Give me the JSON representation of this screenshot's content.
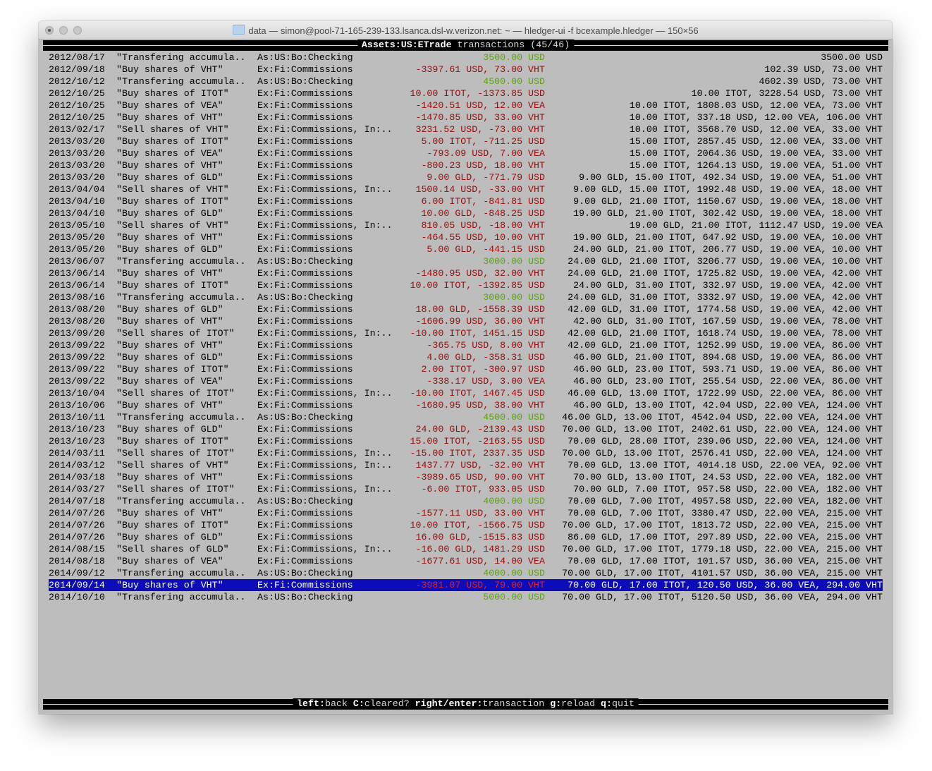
{
  "window": {
    "title": "data — simon@pool-71-165-239-133.lsanca.dsl-w.verizon.net: ~ — hledger-ui -f bcexample.hledger — 150×56"
  },
  "header": {
    "account": "Assets:US:ETrade",
    "suffix": " transactions (45/46)"
  },
  "colors": {
    "positive": "#5aa40c",
    "negative": "#a00b0b",
    "selection": "#0c0cb8",
    "background": "#bdbdbd"
  },
  "selected_index": 44,
  "rows": [
    {
      "date": "2012/08/17",
      "desc": "\"Transfering accumula..",
      "account": "As:US:Bo:Checking",
      "amount": "3500.00 USD",
      "sign": "green",
      "balance": "3500.00 USD"
    },
    {
      "date": "2012/09/18",
      "desc": "\"Buy shares of VHT\"",
      "account": "Ex:Fi:Commissions",
      "amount": "-3397.61 USD, 73.00 VHT",
      "sign": "red",
      "balance": "102.39 USD, 73.00 VHT"
    },
    {
      "date": "2012/10/12",
      "desc": "\"Transfering accumula..",
      "account": "As:US:Bo:Checking",
      "amount": "4500.00 USD",
      "sign": "green",
      "balance": "4602.39 USD, 73.00 VHT"
    },
    {
      "date": "2012/10/25",
      "desc": "\"Buy shares of ITOT\"",
      "account": "Ex:Fi:Commissions",
      "amount": "10.00 ITOT, -1373.85 USD",
      "sign": "red",
      "balance": "10.00 ITOT, 3228.54 USD, 73.00 VHT"
    },
    {
      "date": "2012/10/25",
      "desc": "\"Buy shares of VEA\"",
      "account": "Ex:Fi:Commissions",
      "amount": "-1420.51 USD, 12.00 VEA",
      "sign": "red",
      "balance": "10.00 ITOT, 1808.03 USD, 12.00 VEA, 73.00 VHT"
    },
    {
      "date": "2012/10/25",
      "desc": "\"Buy shares of VHT\"",
      "account": "Ex:Fi:Commissions",
      "amount": "-1470.85 USD, 33.00 VHT",
      "sign": "red",
      "balance": "10.00 ITOT, 337.18 USD, 12.00 VEA, 106.00 VHT"
    },
    {
      "date": "2013/02/17",
      "desc": "\"Sell shares of VHT\"",
      "account": "Ex:Fi:Commissions, In:..",
      "amount": "3231.52 USD, -73.00 VHT",
      "sign": "red",
      "balance": "10.00 ITOT, 3568.70 USD, 12.00 VEA, 33.00 VHT"
    },
    {
      "date": "2013/03/20",
      "desc": "\"Buy shares of ITOT\"",
      "account": "Ex:Fi:Commissions",
      "amount": "5.00 ITOT, -711.25 USD",
      "sign": "red",
      "balance": "15.00 ITOT, 2857.45 USD, 12.00 VEA, 33.00 VHT"
    },
    {
      "date": "2013/03/20",
      "desc": "\"Buy shares of VEA\"",
      "account": "Ex:Fi:Commissions",
      "amount": "-793.09 USD, 7.00 VEA",
      "sign": "red",
      "balance": "15.00 ITOT, 2064.36 USD, 19.00 VEA, 33.00 VHT"
    },
    {
      "date": "2013/03/20",
      "desc": "\"Buy shares of VHT\"",
      "account": "Ex:Fi:Commissions",
      "amount": "-800.23 USD, 18.00 VHT",
      "sign": "red",
      "balance": "15.00 ITOT, 1264.13 USD, 19.00 VEA, 51.00 VHT"
    },
    {
      "date": "2013/03/20",
      "desc": "\"Buy shares of GLD\"",
      "account": "Ex:Fi:Commissions",
      "amount": "9.00 GLD, -771.79 USD",
      "sign": "red",
      "balance": "9.00 GLD, 15.00 ITOT, 492.34 USD, 19.00 VEA, 51.00 VHT"
    },
    {
      "date": "2013/04/04",
      "desc": "\"Sell shares of VHT\"",
      "account": "Ex:Fi:Commissions, In:..",
      "amount": "1500.14 USD, -33.00 VHT",
      "sign": "red",
      "balance": "9.00 GLD, 15.00 ITOT, 1992.48 USD, 19.00 VEA, 18.00 VHT"
    },
    {
      "date": "2013/04/10",
      "desc": "\"Buy shares of ITOT\"",
      "account": "Ex:Fi:Commissions",
      "amount": "6.00 ITOT, -841.81 USD",
      "sign": "red",
      "balance": "9.00 GLD, 21.00 ITOT, 1150.67 USD, 19.00 VEA, 18.00 VHT"
    },
    {
      "date": "2013/04/10",
      "desc": "\"Buy shares of GLD\"",
      "account": "Ex:Fi:Commissions",
      "amount": "10.00 GLD, -848.25 USD",
      "sign": "red",
      "balance": "19.00 GLD, 21.00 ITOT, 302.42 USD, 19.00 VEA, 18.00 VHT"
    },
    {
      "date": "2013/05/10",
      "desc": "\"Sell shares of VHT\"",
      "account": "Ex:Fi:Commissions, In:..",
      "amount": "810.05 USD, -18.00 VHT",
      "sign": "red",
      "balance": "19.00 GLD, 21.00 ITOT, 1112.47 USD, 19.00 VEA"
    },
    {
      "date": "2013/05/20",
      "desc": "\"Buy shares of VHT\"",
      "account": "Ex:Fi:Commissions",
      "amount": "-464.55 USD, 10.00 VHT",
      "sign": "red",
      "balance": "19.00 GLD, 21.00 ITOT, 647.92 USD, 19.00 VEA, 10.00 VHT"
    },
    {
      "date": "2013/05/20",
      "desc": "\"Buy shares of GLD\"",
      "account": "Ex:Fi:Commissions",
      "amount": "5.00 GLD, -441.15 USD",
      "sign": "red",
      "balance": "24.00 GLD, 21.00 ITOT, 206.77 USD, 19.00 VEA, 10.00 VHT"
    },
    {
      "date": "2013/06/07",
      "desc": "\"Transfering accumula..",
      "account": "As:US:Bo:Checking",
      "amount": "3000.00 USD",
      "sign": "green",
      "balance": "24.00 GLD, 21.00 ITOT, 3206.77 USD, 19.00 VEA, 10.00 VHT"
    },
    {
      "date": "2013/06/14",
      "desc": "\"Buy shares of VHT\"",
      "account": "Ex:Fi:Commissions",
      "amount": "-1480.95 USD, 32.00 VHT",
      "sign": "red",
      "balance": "24.00 GLD, 21.00 ITOT, 1725.82 USD, 19.00 VEA, 42.00 VHT"
    },
    {
      "date": "2013/06/14",
      "desc": "\"Buy shares of ITOT\"",
      "account": "Ex:Fi:Commissions",
      "amount": "10.00 ITOT, -1392.85 USD",
      "sign": "red",
      "balance": "24.00 GLD, 31.00 ITOT, 332.97 USD, 19.00 VEA, 42.00 VHT"
    },
    {
      "date": "2013/08/16",
      "desc": "\"Transfering accumula..",
      "account": "As:US:Bo:Checking",
      "amount": "3000.00 USD",
      "sign": "green",
      "balance": "24.00 GLD, 31.00 ITOT, 3332.97 USD, 19.00 VEA, 42.00 VHT"
    },
    {
      "date": "2013/08/20",
      "desc": "\"Buy shares of GLD\"",
      "account": "Ex:Fi:Commissions",
      "amount": "18.00 GLD, -1558.39 USD",
      "sign": "red",
      "balance": "42.00 GLD, 31.00 ITOT, 1774.58 USD, 19.00 VEA, 42.00 VHT"
    },
    {
      "date": "2013/08/20",
      "desc": "\"Buy shares of VHT\"",
      "account": "Ex:Fi:Commissions",
      "amount": "-1606.99 USD, 36.00 VHT",
      "sign": "red",
      "balance": "42.00 GLD, 31.00 ITOT, 167.59 USD, 19.00 VEA, 78.00 VHT"
    },
    {
      "date": "2013/09/20",
      "desc": "\"Sell shares of ITOT\"",
      "account": "Ex:Fi:Commissions, In:..",
      "amount": "-10.00 ITOT, 1451.15 USD",
      "sign": "red",
      "balance": "42.00 GLD, 21.00 ITOT, 1618.74 USD, 19.00 VEA, 78.00 VHT"
    },
    {
      "date": "2013/09/22",
      "desc": "\"Buy shares of VHT\"",
      "account": "Ex:Fi:Commissions",
      "amount": "-365.75 USD, 8.00 VHT",
      "sign": "red",
      "balance": "42.00 GLD, 21.00 ITOT, 1252.99 USD, 19.00 VEA, 86.00 VHT"
    },
    {
      "date": "2013/09/22",
      "desc": "\"Buy shares of GLD\"",
      "account": "Ex:Fi:Commissions",
      "amount": "4.00 GLD, -358.31 USD",
      "sign": "red",
      "balance": "46.00 GLD, 21.00 ITOT, 894.68 USD, 19.00 VEA, 86.00 VHT"
    },
    {
      "date": "2013/09/22",
      "desc": "\"Buy shares of ITOT\"",
      "account": "Ex:Fi:Commissions",
      "amount": "2.00 ITOT, -300.97 USD",
      "sign": "red",
      "balance": "46.00 GLD, 23.00 ITOT, 593.71 USD, 19.00 VEA, 86.00 VHT"
    },
    {
      "date": "2013/09/22",
      "desc": "\"Buy shares of VEA\"",
      "account": "Ex:Fi:Commissions",
      "amount": "-338.17 USD, 3.00 VEA",
      "sign": "red",
      "balance": "46.00 GLD, 23.00 ITOT, 255.54 USD, 22.00 VEA, 86.00 VHT"
    },
    {
      "date": "2013/10/04",
      "desc": "\"Sell shares of ITOT\"",
      "account": "Ex:Fi:Commissions, In:..",
      "amount": "-10.00 ITOT, 1467.45 USD",
      "sign": "red",
      "balance": "46.00 GLD, 13.00 ITOT, 1722.99 USD, 22.00 VEA, 86.00 VHT"
    },
    {
      "date": "2013/10/06",
      "desc": "\"Buy shares of VHT\"",
      "account": "Ex:Fi:Commissions",
      "amount": "-1680.95 USD, 38.00 VHT",
      "sign": "red",
      "balance": "46.00 GLD, 13.00 ITOT, 42.04 USD, 22.00 VEA, 124.00 VHT"
    },
    {
      "date": "2013/10/11",
      "desc": "\"Transfering accumula..",
      "account": "As:US:Bo:Checking",
      "amount": "4500.00 USD",
      "sign": "green",
      "balance": "46.00 GLD, 13.00 ITOT, 4542.04 USD, 22.00 VEA, 124.00 VHT"
    },
    {
      "date": "2013/10/23",
      "desc": "\"Buy shares of GLD\"",
      "account": "Ex:Fi:Commissions",
      "amount": "24.00 GLD, -2139.43 USD",
      "sign": "red",
      "balance": "70.00 GLD, 13.00 ITOT, 2402.61 USD, 22.00 VEA, 124.00 VHT"
    },
    {
      "date": "2013/10/23",
      "desc": "\"Buy shares of ITOT\"",
      "account": "Ex:Fi:Commissions",
      "amount": "15.00 ITOT, -2163.55 USD",
      "sign": "red",
      "balance": "70.00 GLD, 28.00 ITOT, 239.06 USD, 22.00 VEA, 124.00 VHT"
    },
    {
      "date": "2014/03/11",
      "desc": "\"Sell shares of ITOT\"",
      "account": "Ex:Fi:Commissions, In:..",
      "amount": "-15.00 ITOT, 2337.35 USD",
      "sign": "red",
      "balance": "70.00 GLD, 13.00 ITOT, 2576.41 USD, 22.00 VEA, 124.00 VHT"
    },
    {
      "date": "2014/03/12",
      "desc": "\"Sell shares of VHT\"",
      "account": "Ex:Fi:Commissions, In:..",
      "amount": "1437.77 USD, -32.00 VHT",
      "sign": "red",
      "balance": "70.00 GLD, 13.00 ITOT, 4014.18 USD, 22.00 VEA, 92.00 VHT"
    },
    {
      "date": "2014/03/18",
      "desc": "\"Buy shares of VHT\"",
      "account": "Ex:Fi:Commissions",
      "amount": "-3989.65 USD, 90.00 VHT",
      "sign": "red",
      "balance": "70.00 GLD, 13.00 ITOT, 24.53 USD, 22.00 VEA, 182.00 VHT"
    },
    {
      "date": "2014/03/27",
      "desc": "\"Sell shares of ITOT\"",
      "account": "Ex:Fi:Commissions, In:..",
      "amount": "-6.00 ITOT, 933.05 USD",
      "sign": "red",
      "balance": "70.00 GLD, 7.00 ITOT, 957.58 USD, 22.00 VEA, 182.00 VHT"
    },
    {
      "date": "2014/07/18",
      "desc": "\"Transfering accumula..",
      "account": "As:US:Bo:Checking",
      "amount": "4000.00 USD",
      "sign": "green",
      "balance": "70.00 GLD, 7.00 ITOT, 4957.58 USD, 22.00 VEA, 182.00 VHT"
    },
    {
      "date": "2014/07/26",
      "desc": "\"Buy shares of VHT\"",
      "account": "Ex:Fi:Commissions",
      "amount": "-1577.11 USD, 33.00 VHT",
      "sign": "red",
      "balance": "70.00 GLD, 7.00 ITOT, 3380.47 USD, 22.00 VEA, 215.00 VHT"
    },
    {
      "date": "2014/07/26",
      "desc": "\"Buy shares of ITOT\"",
      "account": "Ex:Fi:Commissions",
      "amount": "10.00 ITOT, -1566.75 USD",
      "sign": "red",
      "balance": "70.00 GLD, 17.00 ITOT, 1813.72 USD, 22.00 VEA, 215.00 VHT"
    },
    {
      "date": "2014/07/26",
      "desc": "\"Buy shares of GLD\"",
      "account": "Ex:Fi:Commissions",
      "amount": "16.00 GLD, -1515.83 USD",
      "sign": "red",
      "balance": "86.00 GLD, 17.00 ITOT, 297.89 USD, 22.00 VEA, 215.00 VHT"
    },
    {
      "date": "2014/08/15",
      "desc": "\"Sell shares of GLD\"",
      "account": "Ex:Fi:Commissions, In:..",
      "amount": "-16.00 GLD, 1481.29 USD",
      "sign": "red",
      "balance": "70.00 GLD, 17.00 ITOT, 1779.18 USD, 22.00 VEA, 215.00 VHT"
    },
    {
      "date": "2014/08/18",
      "desc": "\"Buy shares of VEA\"",
      "account": "Ex:Fi:Commissions",
      "amount": "-1677.61 USD, 14.00 VEA",
      "sign": "red",
      "balance": "70.00 GLD, 17.00 ITOT, 101.57 USD, 36.00 VEA, 215.00 VHT"
    },
    {
      "date": "2014/09/12",
      "desc": "\"Transfering accumula..",
      "account": "As:US:Bo:Checking",
      "amount": "4000.00 USD",
      "sign": "green",
      "balance": "70.00 GLD, 17.00 ITOT, 4101.57 USD, 36.00 VEA, 215.00 VHT"
    },
    {
      "date": "2014/09/14",
      "desc": "\"Buy shares of VHT\"",
      "account": "Ex:Fi:Commissions",
      "amount": "-3981.07 USD, 79.00 VHT",
      "sign": "red",
      "balance": "70.00 GLD, 17.00 ITOT, 120.50 USD, 36.00 VEA, 294.00 VHT"
    },
    {
      "date": "2014/10/10",
      "desc": "\"Transfering accumula..",
      "account": "As:US:Bo:Checking",
      "amount": "5000.00 USD",
      "sign": "green",
      "balance": "70.00 GLD, 17.00 ITOT, 5120.50 USD, 36.00 VEA, 294.00 VHT"
    }
  ],
  "footer": {
    "keys": [
      {
        "key": "left",
        "action": "back"
      },
      {
        "key": "C",
        "action": "cleared?"
      },
      {
        "key": "right/enter",
        "action": "transaction"
      },
      {
        "key": "g",
        "action": "reload"
      },
      {
        "key": "q",
        "action": "quit"
      }
    ]
  }
}
